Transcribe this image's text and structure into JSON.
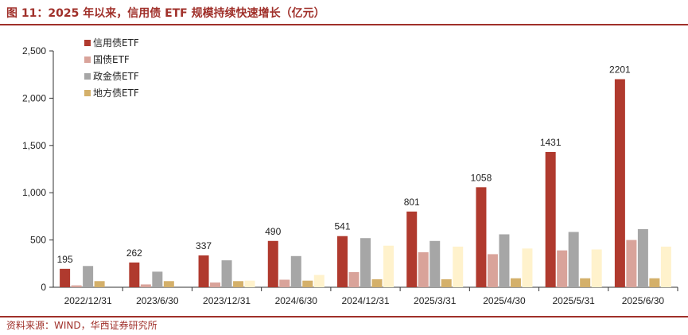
{
  "header": {
    "title": "图 11：2025 年以来，信用债 ETF 规模持续快速增长（亿元）"
  },
  "footer": {
    "source": "资料来源：WIND，华西证券研究所"
  },
  "chart_data": {
    "type": "bar",
    "categories": [
      "2022/12/31",
      "2023/6/30",
      "2023/12/31",
      "2024/6/30",
      "2024/12/31",
      "2025/3/31",
      "2025/4/30",
      "2025/5/31",
      "2025/6/30"
    ],
    "series": [
      {
        "name": "信用债ETF",
        "color": "#b03a2e",
        "values": [
          195,
          262,
          337,
          490,
          541,
          801,
          1058,
          1431,
          2201
        ]
      },
      {
        "name": "国债ETF",
        "color": "#d9a39a",
        "values": [
          20,
          30,
          50,
          80,
          160,
          370,
          350,
          390,
          500
        ]
      },
      {
        "name": "政金债ETF",
        "color": "#a6a6a6",
        "values": [
          225,
          165,
          285,
          330,
          520,
          490,
          560,
          585,
          615
        ]
      },
      {
        "name": "地方债ETF",
        "color": "#d4b06a",
        "values": [
          65,
          65,
          65,
          70,
          85,
          85,
          95,
          95,
          95
        ]
      },
      {
        "name": "",
        "color": "#fff2cc",
        "values": [
          0,
          0,
          70,
          130,
          440,
          430,
          410,
          400,
          430
        ]
      }
    ],
    "data_labels": [
      "195",
      "262",
      "337",
      "490",
      "541",
      "801",
      "1058",
      "1431",
      "2201"
    ],
    "yticks": [
      "0",
      "500",
      "1,000",
      "1,500",
      "2,000",
      "2,500"
    ],
    "ylim": [
      0,
      2500
    ],
    "xlabel": "",
    "ylabel": "",
    "grid": false,
    "legend_position": "top-left"
  }
}
